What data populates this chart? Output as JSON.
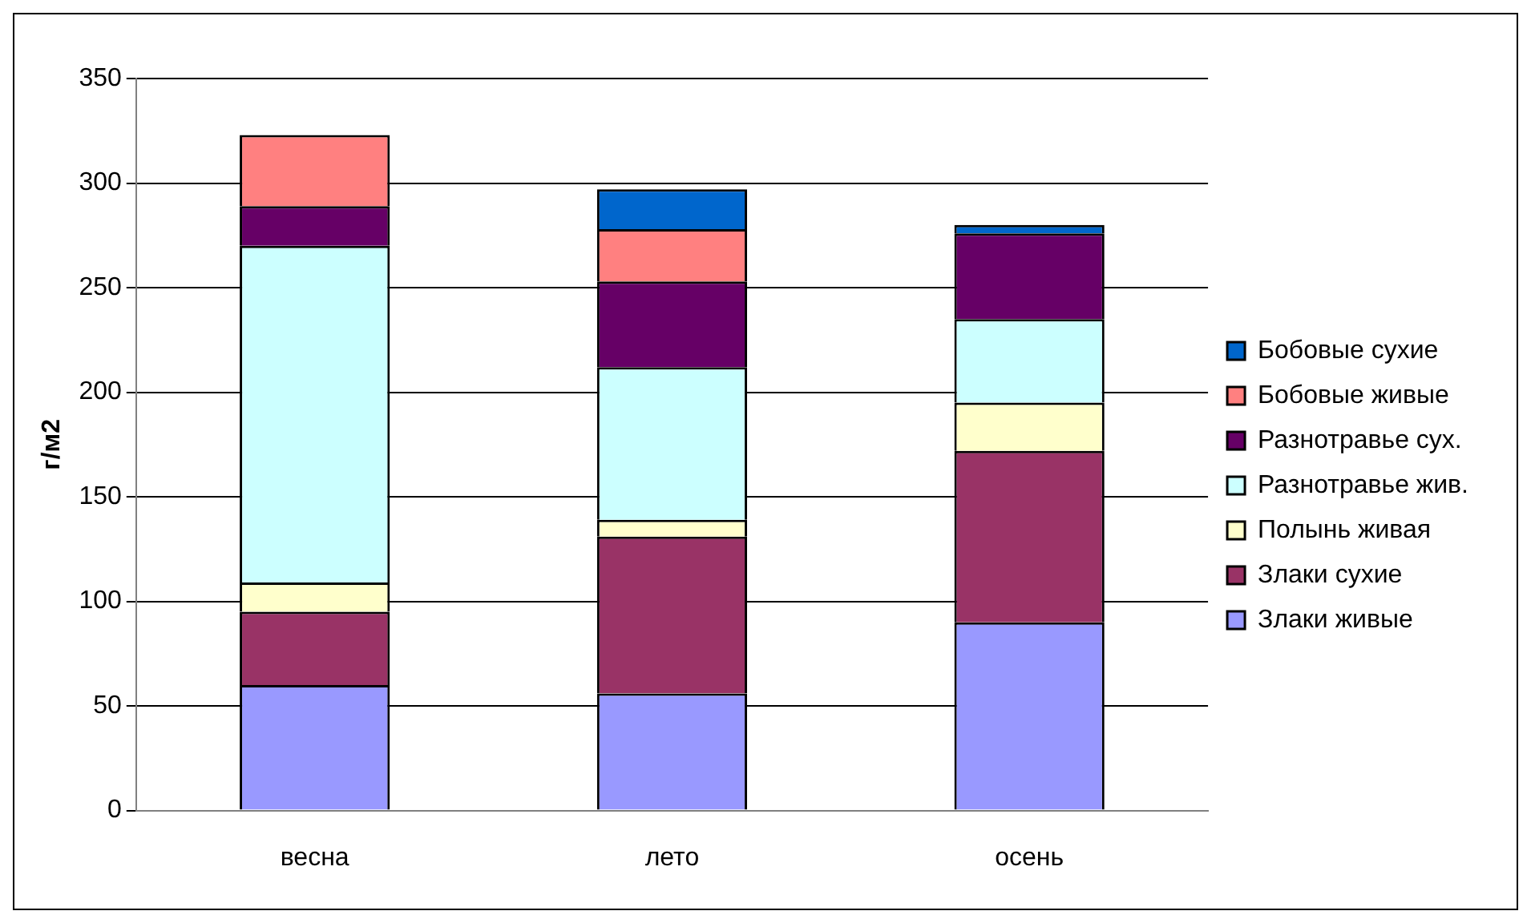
{
  "chart_data": {
    "type": "bar",
    "stacked": true,
    "ylabel": "г/м2",
    "categories": [
      "весна",
      "лето",
      "осень"
    ],
    "series": [
      {
        "name": "Злаки живые",
        "color": "#9999ff",
        "values": [
          60,
          56,
          90
        ]
      },
      {
        "name": "Злаки сухие",
        "color": "#993366",
        "values": [
          35,
          75,
          82
        ]
      },
      {
        "name": "Полынь живая",
        "color": "#ffffcc",
        "values": [
          14,
          8,
          23
        ]
      },
      {
        "name": "Разнотравье жив.",
        "color": "#ccffff",
        "values": [
          161,
          73,
          40
        ]
      },
      {
        "name": "Разнотравье сух.",
        "color": "#660066",
        "values": [
          19,
          41,
          41
        ]
      },
      {
        "name": "Бобовые живые",
        "color": "#ff8080",
        "values": [
          34,
          25,
          0
        ]
      },
      {
        "name": "Бобовые сухие",
        "color": "#0066cc",
        "values": [
          0,
          19,
          4
        ]
      }
    ],
    "ylim": [
      0,
      350
    ],
    "yticks": [
      0,
      50,
      100,
      150,
      200,
      250,
      300,
      350
    ],
    "grid": "y",
    "legend": "right"
  }
}
